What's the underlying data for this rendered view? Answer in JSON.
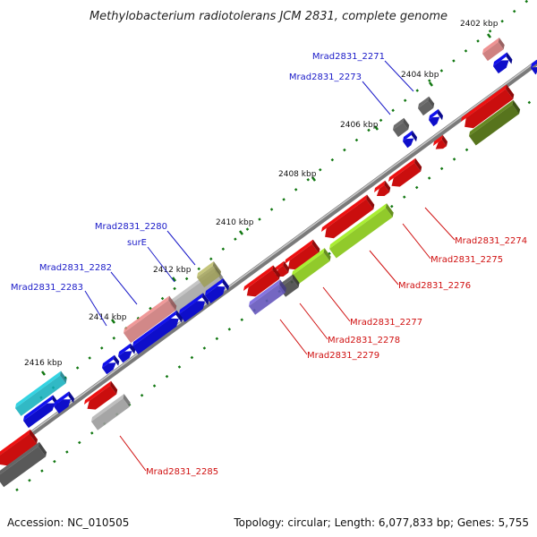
{
  "title": "Methylobacterium radiotolerans JCM 2831, complete genome",
  "ticks": [
    "2402 kbp",
    "2404 kbp",
    "2406 kbp",
    "2408 kbp",
    "2410 kbp",
    "2412 kbp",
    "2414 kbp",
    "2416 kbp"
  ],
  "labels_forward": [
    "Mrad2831_2271",
    "Mrad2831_2273",
    "Mrad2831_2280",
    "surE",
    "Mrad2831_2282",
    "Mrad2831_2283"
  ],
  "labels_reverse": [
    "Mrad2831_2274",
    "Mrad2831_2275",
    "Mrad2831_2276",
    "Mrad2831_2277",
    "Mrad2831_2278",
    "Mrad2831_2279",
    "Mrad2831_2285"
  ],
  "footer": {
    "accession": "Accession: NC_010505",
    "summary": "Topology: circular; Length: 6,077,833 bp; Genes: 5,755"
  },
  "colors": {
    "backbone": "#808080",
    "red": "#ee1111",
    "blue": "#1111ee",
    "dark_gray": "#555555",
    "light_gray": "#b8b8b8",
    "pink": "#ee8888",
    "olive": "#bbbb66",
    "dark_olive": "#668822",
    "lime": "#aaee33",
    "purple": "#7766dd",
    "cyan": "#11ccdd",
    "tick_green": "#117711"
  }
}
